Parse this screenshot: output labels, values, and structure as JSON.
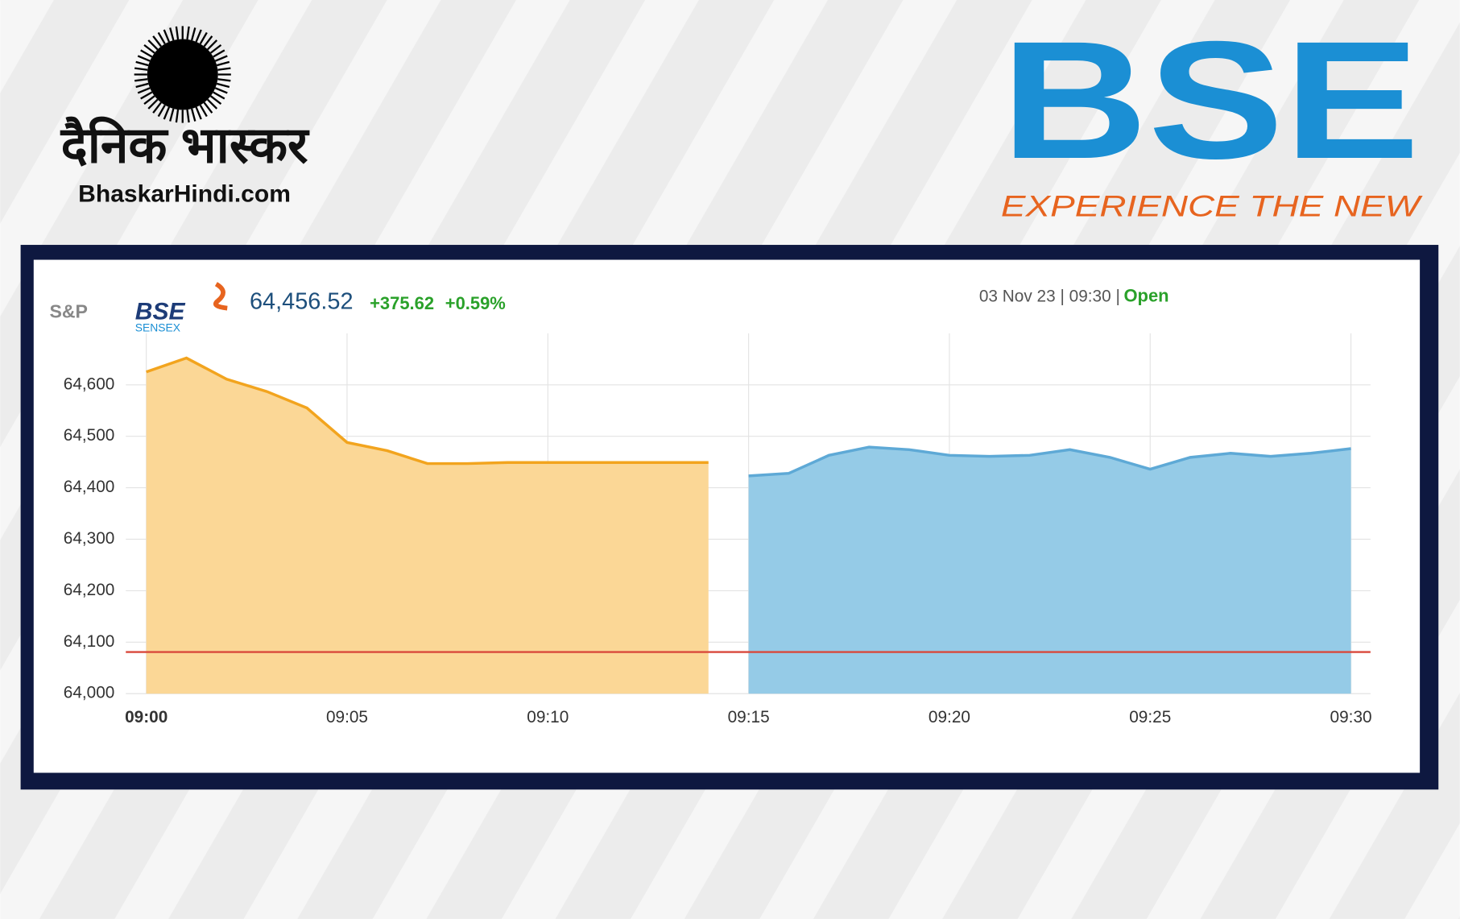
{
  "branding": {
    "publisher_name": "दैनिक भास्कर",
    "publisher_site": "BhaskarHindi.com",
    "exchange_logo": "BSE",
    "exchange_tagline": "EXPERIENCE THE NEW"
  },
  "quote": {
    "provider": "S&P",
    "brand": "BSE",
    "index": "SENSEX",
    "price": "64,456.52",
    "change": "+375.62",
    "change_pct": "+0.59%",
    "timestamp": "03 Nov 23 | 09:30 |",
    "status": "Open"
  },
  "chart_data": {
    "type": "area",
    "categories": [
      "09:00",
      null,
      null,
      null,
      null,
      "09:05",
      null,
      null,
      null,
      null,
      "09:10",
      null,
      null,
      null,
      null,
      "09:15",
      null,
      null,
      null,
      null,
      "09:20",
      null,
      null,
      null,
      null,
      "09:25",
      null,
      null,
      null,
      null,
      "09:30"
    ],
    "series": [
      {
        "color": "#f2a41e",
        "fill_color": "#fbd796",
        "values": [
          64625,
          64652,
          64611,
          64587,
          64555,
          64488,
          64472,
          64447,
          64447,
          64449,
          64449,
          64449,
          64449,
          64449,
          64449,
          null,
          null,
          null,
          null,
          null,
          null,
          null,
          null,
          null,
          null,
          null,
          null,
          null,
          null,
          null,
          null
        ]
      },
      {
        "color": "#5ea9d6",
        "fill_color": "#95cbe7",
        "values": [
          null,
          null,
          null,
          null,
          null,
          null,
          null,
          null,
          null,
          null,
          null,
          null,
          null,
          null,
          null,
          64423,
          64428,
          64463,
          64479,
          64474,
          64463,
          64461,
          64463,
          64474,
          64459,
          64436,
          64459,
          64467,
          64461,
          64467,
          64476
        ]
      }
    ],
    "reference_line": {
      "value": 64080.9,
      "color": "#d9483b"
    },
    "ylim": [
      64000,
      64700
    ],
    "yticks": [
      {
        "value": 64000,
        "label": "64,000"
      },
      {
        "value": 64100,
        "label": "64,100"
      },
      {
        "value": 64200,
        "label": "64,200"
      },
      {
        "value": 64300,
        "label": "64,300"
      },
      {
        "value": 64400,
        "label": "64,400"
      },
      {
        "value": 64500,
        "label": "64,500"
      },
      {
        "value": 64600,
        "label": "64,600"
      }
    ],
    "grid": true
  }
}
